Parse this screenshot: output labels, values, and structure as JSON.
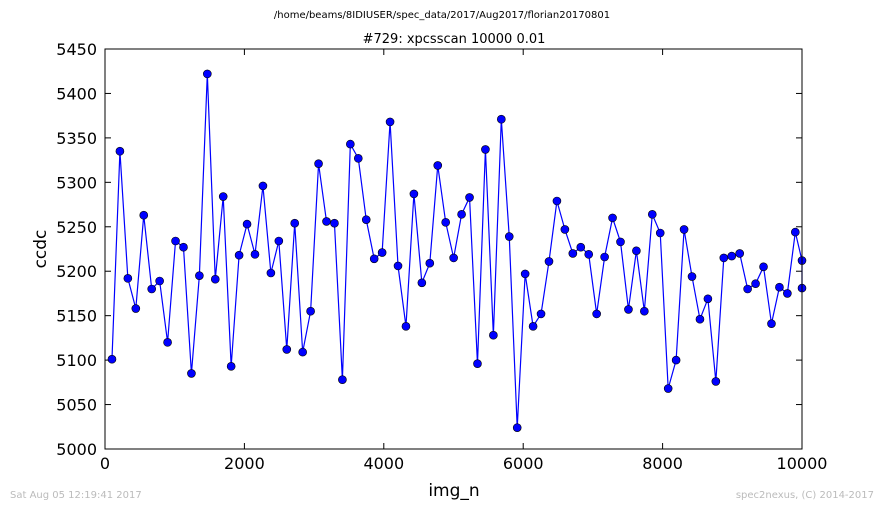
{
  "suptitle": "/home/beams/8IDIUSER/spec_data/2017/Aug2017/florian20170801",
  "footer": {
    "timestamp": "Sat Aug 05 12:19:41 2017",
    "credit": "spec2nexus, (C) 2014-2017"
  },
  "chart_data": {
    "type": "line",
    "title": "#729: xpcsscan 10000 0.01",
    "xlabel": "img_n",
    "ylabel": "ccdc",
    "xlim": [
      0,
      10000
    ],
    "ylim": [
      5000,
      5450
    ],
    "xticks": [
      0,
      2000,
      4000,
      6000,
      8000,
      10000
    ],
    "yticks": [
      5000,
      5050,
      5100,
      5150,
      5200,
      5250,
      5300,
      5350,
      5400,
      5450
    ],
    "grid": false,
    "series": [
      {
        "color": "#0000ff",
        "marker": "circle",
        "x": [
          100,
          214,
          328,
          442,
          556,
          670,
          784,
          898,
          1012,
          1126,
          1240,
          1354,
          1468,
          1582,
          1696,
          1810,
          1924,
          2038,
          2152,
          2266,
          2380,
          2494,
          2608,
          2722,
          2836,
          2950,
          3064,
          3178,
          3292,
          3406,
          3520,
          3634,
          3748,
          3862,
          3976,
          4090,
          4204,
          4318,
          4432,
          4546,
          4660,
          4774,
          4888,
          5002,
          5116,
          5230,
          5344,
          5458,
          5572,
          5686,
          5800,
          5914,
          6028,
          6142,
          6256,
          6370,
          6484,
          6598,
          6712,
          6826,
          6940,
          7054,
          7168,
          7282,
          7396,
          7510,
          7624,
          7738,
          7852,
          7966,
          8080,
          8194,
          8308,
          8422,
          8536,
          8650,
          8764,
          8878,
          8992,
          9106,
          9220,
          9334,
          9448,
          9562,
          9676,
          9790,
          9904,
          10000,
          10000
        ],
        "y": [
          5101,
          5335,
          5192,
          5158,
          5263,
          5180,
          5189,
          5120,
          5234,
          5227,
          5085,
          5195,
          5422,
          5191,
          5284,
          5093,
          5218,
          5253,
          5219,
          5296,
          5198,
          5234,
          5112,
          5254,
          5109,
          5155,
          5321,
          5256,
          5254,
          5078,
          5343,
          5327,
          5258,
          5214,
          5221,
          5368,
          5206,
          5138,
          5287,
          5187,
          5209,
          5319,
          5255,
          5215,
          5264,
          5283,
          5096,
          5337,
          5128,
          5371,
          5239,
          5024,
          5197,
          5138,
          5152,
          5211,
          5279,
          5247,
          5220,
          5227,
          5219,
          5152,
          5216,
          5260,
          5233,
          5157,
          5223,
          5155,
          5264,
          5243,
          5068,
          5100,
          5247,
          5194,
          5146,
          5169,
          5076,
          5215,
          5217,
          5220,
          5180,
          5186,
          5205,
          5141,
          5182,
          5175,
          5244,
          5212,
          5181
        ]
      }
    ]
  }
}
